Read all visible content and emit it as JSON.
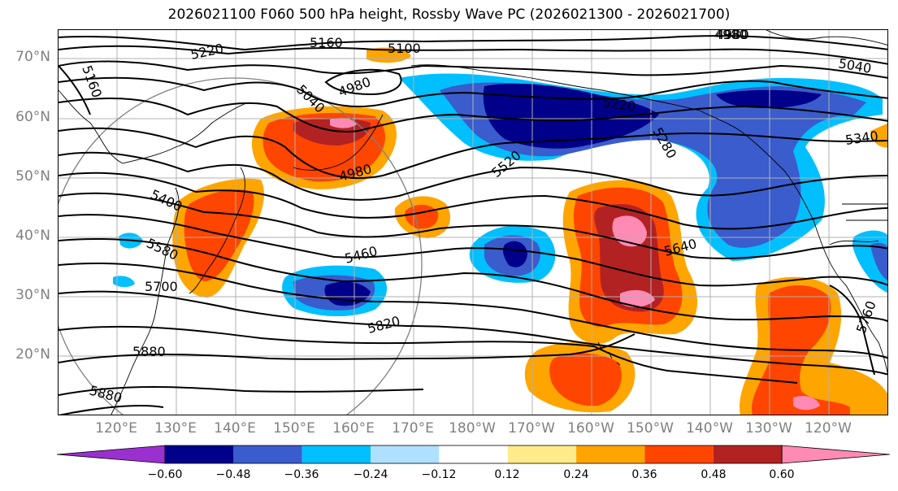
{
  "title": "2026021100 F060 500 hPa height, Rossby Wave PC (2026021300 - 2026021700)",
  "lat_labels": [
    "70°N",
    "60°N",
    "50°N",
    "40°N",
    "30°N",
    "20°N"
  ],
  "lon_labels": [
    "120°E",
    "130°E",
    "140°E",
    "150°E",
    "160°E",
    "170°E",
    "180°W",
    "170°W",
    "160°W",
    "150°W",
    "140°W",
    "130°W",
    "120°W"
  ],
  "colorbar": {
    "ticks": [
      "−0.60",
      "−0.48",
      "−0.36",
      "−0.24",
      "−0.12",
      "0.12",
      "0.24",
      "0.36",
      "0.48",
      "0.60"
    ],
    "colors": [
      "#9a30d0",
      "#00008b",
      "#3a5ccc",
      "#00bfff",
      "#b0e0ff",
      "#ffffff",
      "#ffeb8a",
      "#ffa500",
      "#ff4500",
      "#b22222",
      "#ff8ab4"
    ]
  },
  "contour_labels": [
    "5220",
    "5160",
    "5100",
    "4980",
    "5160",
    "5040",
    "4980",
    "4980",
    "5400",
    "5580",
    "5700",
    "5460",
    "5820",
    "5880",
    "5880",
    "5220",
    "5280",
    "5520",
    "5640",
    "4980",
    "5040",
    "5340",
    "5760"
  ]
}
